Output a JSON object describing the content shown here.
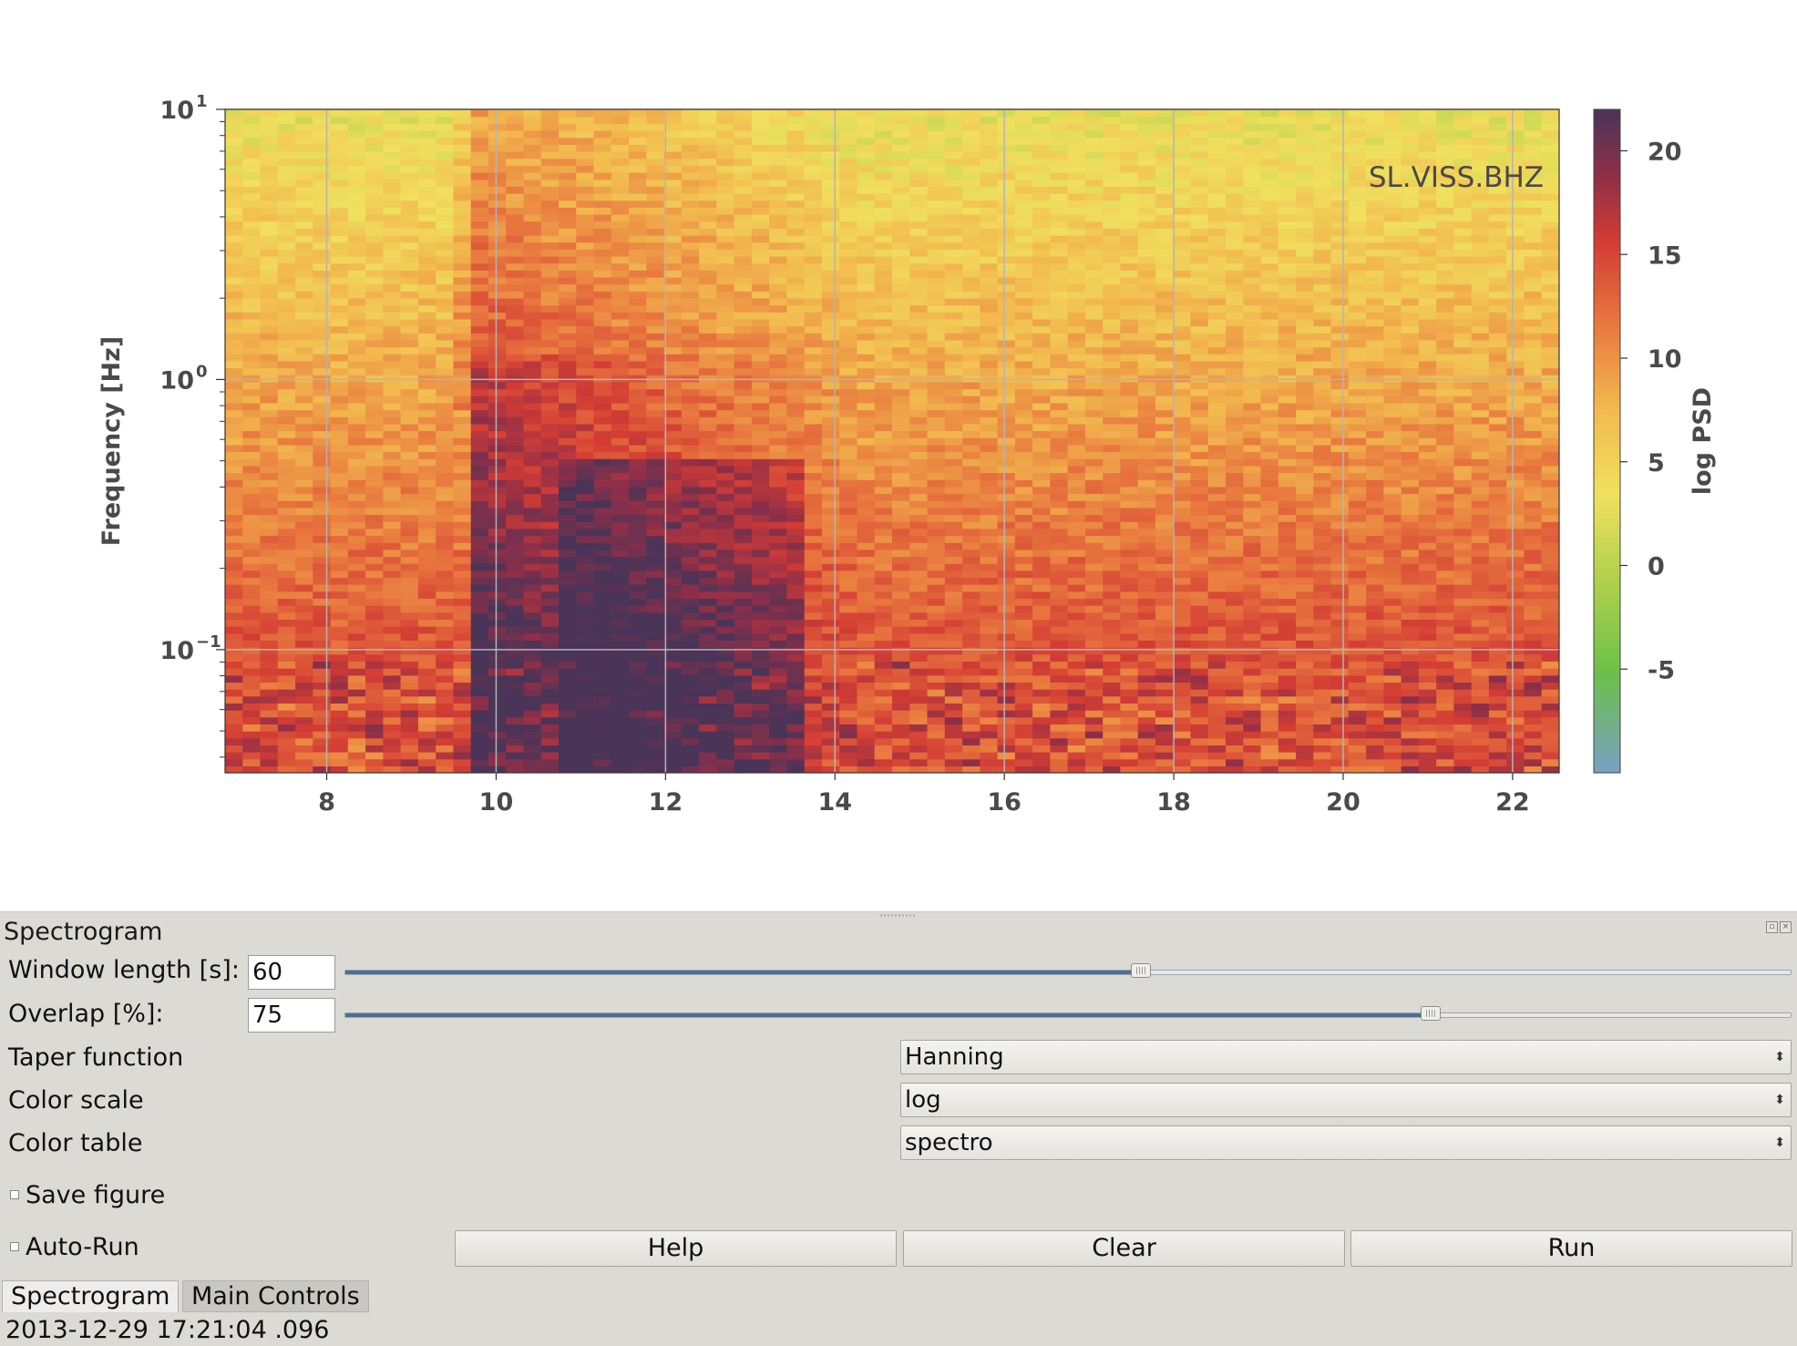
{
  "plot": {
    "station_label": "SL.VISS.BHZ",
    "ylabel": "Frequency [Hz]",
    "colorbar_label": "log PSD",
    "colorbar_ticks": [
      "20",
      "15",
      "10",
      "5",
      "0",
      "-5"
    ],
    "colorbar_tick_values": [
      20,
      15,
      10,
      5,
      0,
      -5
    ],
    "colorbar_range": [
      -10,
      22
    ]
  },
  "chart_data": {
    "type": "heatmap",
    "title": "",
    "xlabel": "",
    "ylabel": "Frequency [Hz]",
    "yscale": "log",
    "xlim": [
      6.8,
      22.55
    ],
    "ylim": [
      0.035,
      10
    ],
    "x_ticks": [
      "8",
      "10",
      "12",
      "14",
      "16",
      "18",
      "20",
      "22"
    ],
    "x_tick_values": [
      8,
      10,
      12,
      14,
      16,
      18,
      20,
      22
    ],
    "y_ticks": [
      {
        "base": "10",
        "exp": "1",
        "value": 10
      },
      {
        "base": "10",
        "exp": "0",
        "value": 1
      },
      {
        "base": "10",
        "exp": "−1",
        "value": 0.1
      }
    ],
    "colorbar": {
      "label": "log PSD",
      "min": -10,
      "max": 22,
      "colormap": "spectro"
    },
    "grid": true,
    "annotation": "SL.VISS.BHZ"
  },
  "panel": {
    "title": "Spectrogram",
    "window_length": {
      "label": "Window length [s]:",
      "value": "60",
      "slider_fraction": 0.55
    },
    "overlap": {
      "label": "Overlap [%]:",
      "value": "75",
      "slider_fraction": 0.75
    },
    "taper": {
      "label": "Taper function",
      "value": "Hanning"
    },
    "color_scale": {
      "label": "Color scale",
      "value": "log"
    },
    "color_table": {
      "label": "Color table",
      "value": "spectro"
    },
    "save_figure": {
      "label": "Save figure",
      "checked": false
    },
    "auto_run": {
      "label": "Auto-Run",
      "checked": false
    },
    "buttons": {
      "help": "Help",
      "clear": "Clear",
      "run": "Run"
    }
  },
  "tabs": [
    {
      "label": "Spectrogram",
      "active": true
    },
    {
      "label": "Main Controls",
      "active": false
    }
  ],
  "status_bar": {
    "text": "2013-12-29 17:21:04 .096"
  }
}
